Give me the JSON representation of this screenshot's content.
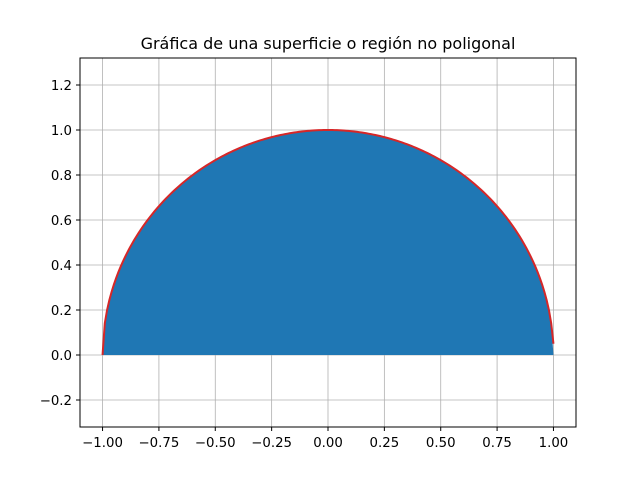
{
  "chart_data": {
    "type": "area",
    "title": "Gráfica de una superficie o región no poligonal",
    "xlabel": "",
    "ylabel": "",
    "xlim": [
      -1.1,
      1.1
    ],
    "ylim": [
      -0.32,
      1.32
    ],
    "x_ticks": [
      -1.0,
      -0.75,
      -0.5,
      -0.25,
      0.0,
      0.25,
      0.5,
      0.75,
      1.0
    ],
    "x_tick_labels": [
      "−1.00",
      "−0.75",
      "−0.50",
      "−0.25",
      "0.00",
      "0.25",
      "0.50",
      "0.75",
      "1.00"
    ],
    "y_ticks": [
      -0.2,
      0.0,
      0.2,
      0.4,
      0.6,
      0.8,
      1.0,
      1.2
    ],
    "y_tick_labels": [
      "−0.2",
      "0.0",
      "0.2",
      "0.4",
      "0.6",
      "0.8",
      "1.0",
      "1.2"
    ],
    "grid": true,
    "series": [
      {
        "kind": "filled_region",
        "color": "#1f77b4",
        "x": [
          -1.0,
          -0.99,
          -0.95,
          -0.9,
          -0.8,
          -0.7,
          -0.6,
          -0.5,
          -0.4,
          -0.3,
          -0.2,
          -0.1,
          0.0,
          0.1,
          0.2,
          0.3,
          0.4,
          0.5,
          0.6,
          0.7,
          0.8,
          0.9,
          0.95,
          0.99,
          1.0
        ],
        "y": [
          0.0,
          0.141,
          0.312,
          0.436,
          0.6,
          0.714,
          0.8,
          0.866,
          0.917,
          0.954,
          0.98,
          0.995,
          1.0,
          0.995,
          0.98,
          0.954,
          0.917,
          0.866,
          0.8,
          0.714,
          0.6,
          0.436,
          0.312,
          0.141,
          0.0
        ]
      },
      {
        "kind": "line",
        "color": "#d62728",
        "x": [
          -1.0,
          -0.99,
          -0.95,
          -0.9,
          -0.8,
          -0.7,
          -0.6,
          -0.5,
          -0.4,
          -0.3,
          -0.2,
          -0.1,
          0.0,
          0.1,
          0.2,
          0.3,
          0.4,
          0.5,
          0.6,
          0.7,
          0.8,
          0.9,
          0.95,
          0.99,
          1.0
        ],
        "y": [
          0.0,
          0.141,
          0.312,
          0.436,
          0.6,
          0.714,
          0.8,
          0.866,
          0.917,
          0.954,
          0.98,
          0.995,
          1.0,
          0.995,
          0.98,
          0.954,
          0.917,
          0.866,
          0.8,
          0.714,
          0.6,
          0.436,
          0.312,
          0.141,
          0.05
        ]
      }
    ]
  }
}
